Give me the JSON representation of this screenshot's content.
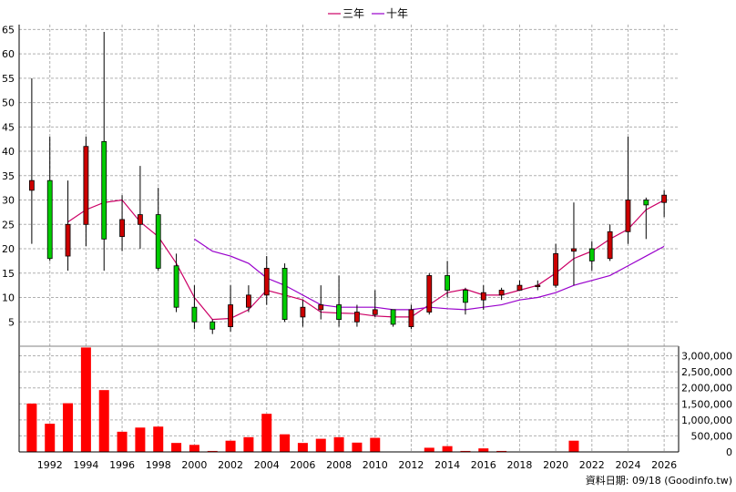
{
  "chart_data": {
    "type": "candlestick+bar",
    "legend": [
      {
        "name": "三年",
        "color": "#cc0066"
      },
      {
        "name": "十年",
        "color": "#9900cc"
      }
    ],
    "price_axis": {
      "ticks": [
        5,
        10,
        15,
        20,
        25,
        30,
        35,
        40,
        45,
        50,
        55,
        60,
        65
      ],
      "ylim": [
        0,
        66
      ]
    },
    "volume_axis": {
      "tick_labels": [
        "0",
        "500,000",
        "1,000,000",
        "1,500,000",
        "2,000,000",
        "2,500,000",
        "3,000,000"
      ],
      "ticks": [
        0,
        500000,
        1000000,
        1500000,
        2000000,
        2500000,
        3000000
      ],
      "ylim": [
        0,
        3300000
      ]
    },
    "x_axis": {
      "labels": [
        "1992",
        "1994",
        "1996",
        "1998",
        "2000",
        "2002",
        "2004",
        "2006",
        "2008",
        "2010",
        "2012",
        "2014",
        "2016",
        "2018",
        "2020",
        "2022",
        "2024",
        "2026"
      ],
      "xlim": [
        1990.3,
        2026.8
      ]
    },
    "candles": [
      {
        "year": 1991,
        "open": 32,
        "close": 34,
        "high": 55,
        "low": 21
      },
      {
        "year": 1992,
        "open": 34,
        "close": 18,
        "high": 43,
        "low": 17.5
      },
      {
        "year": 1993,
        "open": 18.5,
        "close": 25,
        "high": 34,
        "low": 15.5
      },
      {
        "year": 1994,
        "open": 25,
        "close": 41,
        "high": 43,
        "low": 20.5
      },
      {
        "year": 1995,
        "open": 42,
        "close": 22,
        "high": 64.5,
        "low": 15.5
      },
      {
        "year": 1996,
        "open": 22.5,
        "close": 26,
        "high": 31,
        "low": 19.5
      },
      {
        "year": 1997,
        "open": 25,
        "close": 27,
        "high": 37,
        "low": 20
      },
      {
        "year": 1998,
        "open": 27,
        "close": 16,
        "high": 32.5,
        "low": 15.5
      },
      {
        "year": 1999,
        "open": 16.5,
        "close": 8,
        "high": 19,
        "low": 7
      },
      {
        "year": 2000,
        "open": 8,
        "close": 5,
        "high": 12.5,
        "low": 3.5
      },
      {
        "year": 2001,
        "open": 5,
        "close": 3.5,
        "high": 5.5,
        "low": 2.5
      },
      {
        "year": 2002,
        "open": 4,
        "close": 8.5,
        "high": 12.5,
        "low": 3
      },
      {
        "year": 2003,
        "open": 8,
        "close": 10.5,
        "high": 12.5,
        "low": 7
      },
      {
        "year": 2004,
        "open": 10.5,
        "close": 16,
        "high": 18.5,
        "low": 8.5
      },
      {
        "year": 2005,
        "open": 16,
        "close": 5.5,
        "high": 17,
        "low": 5
      },
      {
        "year": 2006,
        "open": 6,
        "close": 8,
        "high": 9.5,
        "low": 4
      },
      {
        "year": 2007,
        "open": 7.5,
        "close": 8.5,
        "high": 12.5,
        "low": 5.5
      },
      {
        "year": 2008,
        "open": 8.5,
        "close": 5.5,
        "high": 14.5,
        "low": 4
      },
      {
        "year": 2009,
        "open": 5,
        "close": 7,
        "high": 8.5,
        "low": 4
      },
      {
        "year": 2010,
        "open": 6.5,
        "close": 7.5,
        "high": 11.5,
        "low": 6
      },
      {
        "year": 2011,
        "open": 7.5,
        "close": 4.5,
        "high": 7.5,
        "low": 4
      },
      {
        "year": 2012,
        "open": 4,
        "close": 7.5,
        "high": 8.5,
        "low": 3.5
      },
      {
        "year": 2013,
        "open": 7,
        "close": 14.5,
        "high": 15,
        "low": 6.5
      },
      {
        "year": 2014,
        "open": 14.5,
        "close": 11.5,
        "high": 17.5,
        "low": 10
      },
      {
        "year": 2015,
        "open": 11.5,
        "close": 9,
        "high": 12,
        "low": 6.5
      },
      {
        "year": 2016,
        "open": 9.5,
        "close": 11,
        "high": 12.5,
        "low": 7.5
      },
      {
        "year": 2017,
        "open": 10.5,
        "close": 11.5,
        "high": 12,
        "low": 9.5
      },
      {
        "year": 2018,
        "open": 11.5,
        "close": 12.5,
        "high": 13.5,
        "low": 11.5
      },
      {
        "year": 2019,
        "open": 12.5,
        "close": 12.5,
        "high": 13.5,
        "low": 11.5
      },
      {
        "year": 2020,
        "open": 12.5,
        "close": 19,
        "high": 21,
        "low": 12
      },
      {
        "year": 2021,
        "open": 19.5,
        "close": 20,
        "high": 29.5,
        "low": 12.5
      },
      {
        "year": 2022,
        "open": 20,
        "close": 17.5,
        "high": 21.5,
        "low": 15.5
      },
      {
        "year": 2023,
        "open": 18,
        "close": 23.5,
        "high": 25,
        "low": 17.5
      },
      {
        "year": 2024,
        "open": 23.5,
        "close": 30,
        "high": 43,
        "low": 21
      },
      {
        "year": 2025,
        "open": 30,
        "close": 29,
        "high": 30.5,
        "low": 22
      },
      {
        "year": 2026,
        "open": 29.5,
        "close": 31,
        "high": 32,
        "low": 26.5
      }
    ],
    "volumes": [
      {
        "year": 1991,
        "value": 1510000
      },
      {
        "year": 1992,
        "value": 880000
      },
      {
        "year": 1993,
        "value": 1520000
      },
      {
        "year": 1994,
        "value": 3260000
      },
      {
        "year": 1995,
        "value": 1930000
      },
      {
        "year": 1996,
        "value": 630000
      },
      {
        "year": 1997,
        "value": 760000
      },
      {
        "year": 1998,
        "value": 790000
      },
      {
        "year": 1999,
        "value": 280000
      },
      {
        "year": 2000,
        "value": 220000
      },
      {
        "year": 2001,
        "value": 30000
      },
      {
        "year": 2002,
        "value": 350000
      },
      {
        "year": 2003,
        "value": 460000
      },
      {
        "year": 2004,
        "value": 1190000
      },
      {
        "year": 2005,
        "value": 550000
      },
      {
        "year": 2006,
        "value": 280000
      },
      {
        "year": 2007,
        "value": 410000
      },
      {
        "year": 2008,
        "value": 460000
      },
      {
        "year": 2009,
        "value": 290000
      },
      {
        "year": 2010,
        "value": 440000
      },
      {
        "year": 2011,
        "value": 10000
      },
      {
        "year": 2012,
        "value": 10000
      },
      {
        "year": 2013,
        "value": 130000
      },
      {
        "year": 2014,
        "value": 180000
      },
      {
        "year": 2015,
        "value": 30000
      },
      {
        "year": 2016,
        "value": 110000
      },
      {
        "year": 2017,
        "value": 30000
      },
      {
        "year": 2018,
        "value": 10000
      },
      {
        "year": 2019,
        "value": 5000
      },
      {
        "year": 2020,
        "value": 10000
      },
      {
        "year": 2021,
        "value": 350000
      },
      {
        "year": 2022,
        "value": 10000
      },
      {
        "year": 2023,
        "value": 10000
      },
      {
        "year": 2024,
        "value": 10000
      },
      {
        "year": 2025,
        "value": 5000
      },
      {
        "year": 2026,
        "value": 5000
      }
    ],
    "ma3": [
      [
        1993,
        25.5
      ],
      [
        1994,
        28
      ],
      [
        1995,
        29.5
      ],
      [
        1996,
        30
      ],
      [
        1997,
        25.5
      ],
      [
        1998,
        22.5
      ],
      [
        1999,
        17
      ],
      [
        2000,
        10
      ],
      [
        2001,
        5.5
      ],
      [
        2002,
        5.7
      ],
      [
        2003,
        7.5
      ],
      [
        2004,
        11.5
      ],
      [
        2005,
        10.5
      ],
      [
        2006,
        9.5
      ],
      [
        2007,
        7
      ],
      [
        2008,
        6.8
      ],
      [
        2009,
        6.7
      ],
      [
        2010,
        6.2
      ],
      [
        2011,
        6
      ],
      [
        2012,
        6
      ],
      [
        2013,
        8.5
      ],
      [
        2014,
        11
      ],
      [
        2015,
        11.7
      ],
      [
        2016,
        10.5
      ],
      [
        2017,
        10.5
      ],
      [
        2018,
        11.5
      ],
      [
        2019,
        12.5
      ],
      [
        2020,
        15
      ],
      [
        2021,
        18
      ],
      [
        2022,
        19.5
      ],
      [
        2023,
        22
      ],
      [
        2024,
        24
      ],
      [
        2025,
        28
      ],
      [
        2026,
        30
      ]
    ],
    "ma10": [
      [
        2000,
        22
      ],
      [
        2001,
        19.5
      ],
      [
        2002,
        18.5
      ],
      [
        2003,
        17
      ],
      [
        2004,
        14
      ],
      [
        2005,
        12.5
      ],
      [
        2006,
        10.5
      ],
      [
        2007,
        8.5
      ],
      [
        2008,
        8
      ],
      [
        2009,
        8
      ],
      [
        2010,
        8
      ],
      [
        2011,
        7.5
      ],
      [
        2012,
        7.5
      ],
      [
        2013,
        8
      ],
      [
        2014,
        7.7
      ],
      [
        2015,
        7.5
      ],
      [
        2016,
        8
      ],
      [
        2017,
        8.5
      ],
      [
        2018,
        9.5
      ],
      [
        2019,
        10
      ],
      [
        2020,
        11
      ],
      [
        2021,
        12.5
      ],
      [
        2022,
        13.5
      ],
      [
        2023,
        14.5
      ],
      [
        2024,
        16.5
      ],
      [
        2025,
        18.5
      ],
      [
        2026,
        20.5
      ]
    ],
    "footer": "資料日期: 09/18  (Goodinfo.tw)"
  }
}
